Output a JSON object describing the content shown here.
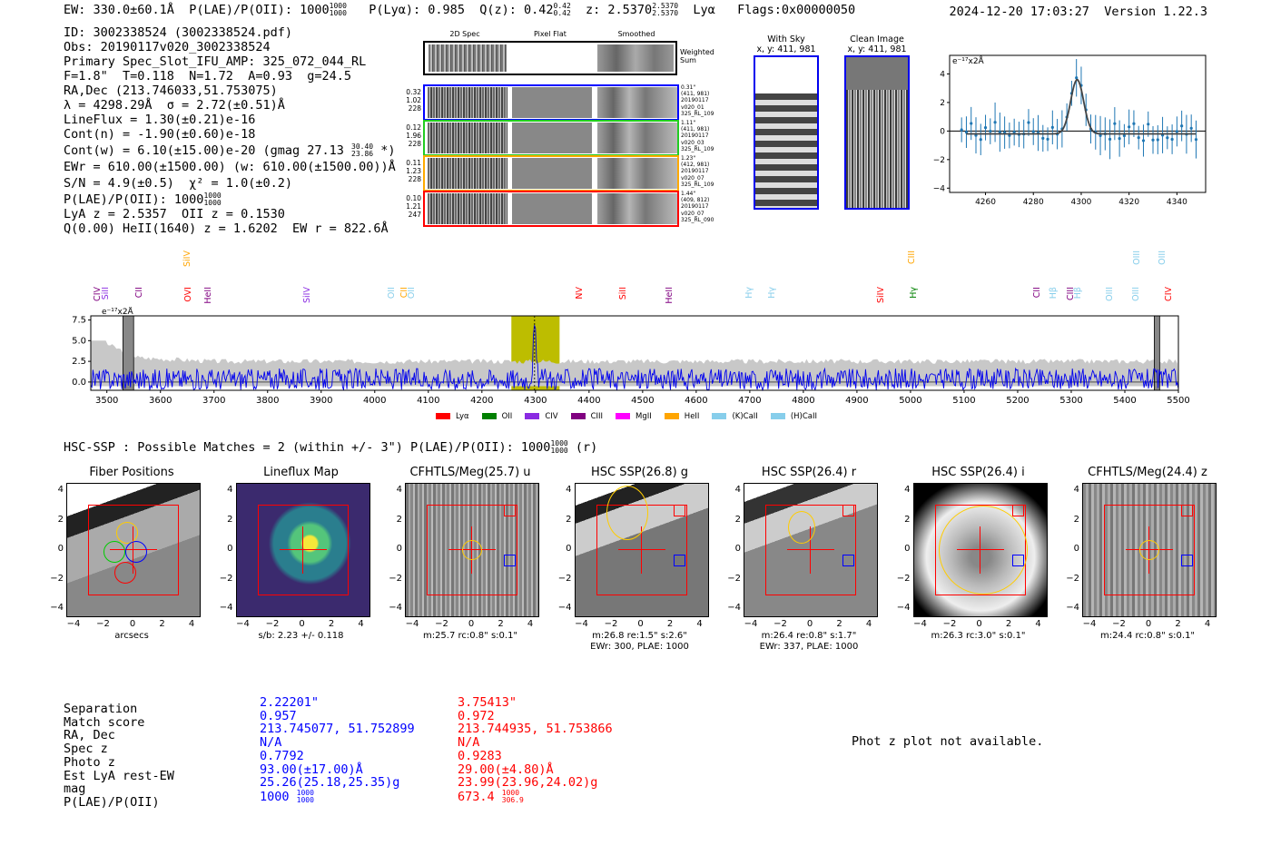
{
  "header": {
    "ew": "EW: 330.0±60.1Å",
    "plae_label": "P(LAE)/P(OII): 1000",
    "plae_hi": "1000",
    "plae_lo": "1000",
    "plya": "P(Lyα): 0.985",
    "qz_label": "Q(z): 0.42",
    "qz_hi": "0.42",
    "qz_lo": "0.42",
    "z_label": "z: 2.5370",
    "z_hi": "2.5370",
    "z_lo": "2.5370",
    "line_name": "Lyα",
    "flags": "Flags:0x00000050",
    "timestamp": "2024-12-20 17:03:27",
    "version": "Version 1.22.3"
  },
  "info": {
    "id": "ID: 3002338524 (3002338524.pdf)",
    "obs": "Obs: 20190117v020_3002338524",
    "primary": "Primary Spec_Slot_IFU_AMP: 325_072_044_RL",
    "fstats": "F=1.8\"  T=0.118  N=1.72  A=0.93  g=24.5",
    "radec": "RA,Dec (213.746033,51.753075)",
    "lambda": "λ = 4298.29Å  σ = 2.72(±0.51)Å",
    "lineflux": "LineFlux = 1.30(±0.21)e-16",
    "contn": "Cont(n) = -1.90(±0.60)e-18",
    "contw": "Cont(w) = 6.10(±15.00)e-20 (gmag 27.13",
    "contw_hi": "30.40",
    "contw_lo": "23.86",
    "contw_end": "*)",
    "ewr": "EWr = 610.00(±1500.00) (w: 610.00(±1500.00))Å",
    "sn": "S/N = 4.9(±0.5)  χ² = 1.0(±0.2)",
    "plae": "P(LAE)/P(OII): 1000",
    "plae_hi": "1000",
    "plae_lo": "1000",
    "lya_z": "LyA z = 2.5357  OII z = 0.1530",
    "q_line": "Q(0.00) HeII(1640) z = 1.6202  EW r = 822.6Å"
  },
  "spec2d": {
    "col_headers": [
      "2D Spec",
      "Pixel Flat",
      "Smoothed"
    ],
    "weighted_label": "Weighted\nSum",
    "rows": [
      {
        "left": [
          "0.32",
          "1.02",
          "228"
        ],
        "right": [
          "0.31\"",
          "(411, 981)",
          "20190117",
          "v020_01",
          "325_RL_109"
        ],
        "color": "#0000ff"
      },
      {
        "left": [
          "0.12",
          "1.96",
          "228"
        ],
        "right": [
          "1.11\"",
          "(411, 981)",
          "20190117",
          "v020_03",
          "325_RL_109"
        ],
        "color": "#22cc22"
      },
      {
        "left": [
          "0.11",
          "1.23",
          "228"
        ],
        "right": [
          "1.23\"",
          "(412, 981)",
          "20190117",
          "v020_07",
          "325_RL_109"
        ],
        "color": "#ffaa00"
      },
      {
        "left": [
          "0.10",
          "1.21",
          "247"
        ],
        "right": [
          "1.44\"",
          "(409, 812)",
          "20190117",
          "v020_07",
          "325_RL_090"
        ],
        "color": "#ff0000"
      }
    ]
  },
  "sky": {
    "with_sky_title": "With Sky",
    "with_sky_xy": "x, y: 411, 981",
    "clean_title": "Clean Image",
    "clean_xy": "x, y: 411, 981"
  },
  "zoom_plot": {
    "unit_label": "e⁻¹⁷x2Å",
    "xticks": [
      "4260",
      "4280",
      "4300",
      "4320",
      "4340"
    ],
    "yticks": [
      "4",
      "2",
      "0",
      "−2",
      "−4"
    ]
  },
  "full_spec": {
    "unit_label": "e⁻¹⁷x2Å",
    "yticks": [
      "7.5",
      "5.0",
      "2.5",
      "0.0"
    ],
    "xticks": [
      "3500",
      "3600",
      "3700",
      "3800",
      "3900",
      "4000",
      "4100",
      "4200",
      "4300",
      "4400",
      "4500",
      "4600",
      "4700",
      "4800",
      "4900",
      "5000",
      "5100",
      "5200",
      "5300",
      "5400",
      "5500"
    ],
    "line_labels": [
      {
        "t": "CIV",
        "c": "#800080"
      },
      {
        "t": "SiII",
        "c": "#8a2be2"
      },
      {
        "t": "CII",
        "c": "#800080"
      },
      {
        "t": "SiIV",
        "c": "#ffa500"
      },
      {
        "t": "OVI",
        "c": "#ff0000"
      },
      {
        "t": "HeII",
        "c": "#800080"
      },
      {
        "t": "SiIV",
        "c": "#8a2be2"
      },
      {
        "t": "OII",
        "c": "#87ceeb"
      },
      {
        "t": "CII",
        "c": "#ffa500"
      },
      {
        "t": "OII",
        "c": "#87ceeb"
      },
      {
        "t": "NV",
        "c": "#ff0000"
      },
      {
        "t": "SiII",
        "c": "#ff0000"
      },
      {
        "t": "HeII",
        "c": "#800080"
      },
      {
        "t": "Hγ",
        "c": "#87ceeb"
      },
      {
        "t": "Hγ",
        "c": "#87ceeb"
      },
      {
        "t": "SiIV",
        "c": "#ff0000"
      },
      {
        "t": "CIII",
        "c": "#ffa500"
      },
      {
        "t": "Hγ",
        "c": "#008000"
      },
      {
        "t": "CII",
        "c": "#800080"
      },
      {
        "t": "Hβ",
        "c": "#87ceeb"
      },
      {
        "t": "CIII",
        "c": "#800080"
      },
      {
        "t": "Hβ",
        "c": "#87ceeb"
      },
      {
        "t": "OIII",
        "c": "#87ceeb"
      },
      {
        "t": "OIII",
        "c": "#87ceeb"
      },
      {
        "t": "OIII",
        "c": "#87ceeb"
      },
      {
        "t": "OIII",
        "c": "#87ceeb"
      },
      {
        "t": "CIV",
        "c": "#ff0000"
      }
    ],
    "legend": [
      {
        "label": "Lyα",
        "color": "#ff0000"
      },
      {
        "label": "OII",
        "color": "#008000"
      },
      {
        "label": "CIV",
        "color": "#8a2be2"
      },
      {
        "label": "CIII",
        "color": "#800080"
      },
      {
        "label": "MgII",
        "color": "#ff00ff"
      },
      {
        "label": "HeII",
        "color": "#ffa500"
      },
      {
        "label": "(K)CaII",
        "color": "#87ceeb"
      },
      {
        "label": "(H)CaII",
        "color": "#87ceeb"
      }
    ]
  },
  "chart_data": {
    "type": "line",
    "title": "",
    "xlabel": "",
    "ylabel": "e⁻¹⁷x2Å",
    "xlim": [
      3470,
      5500
    ],
    "ylim": [
      -1,
      8
    ],
    "highlight_band": [
      4255,
      4345
    ],
    "emission_line": 4298.29
  },
  "hsc_header": {
    "text": "HSC-SSP : Possible Matches = 2 (within +/- 3\")  P(LAE)/P(OII): 1000",
    "hi": "1000",
    "lo": "1000",
    "end": "(r)"
  },
  "cutouts": [
    {
      "title": "Fiber Positions",
      "caption1": "arcsecs",
      "caption2": ""
    },
    {
      "title": "Lineflux Map",
      "caption1": "s/b: 2.23 +/- 0.118",
      "caption2": ""
    },
    {
      "title": "CFHTLS/Meg(25.7) u",
      "caption1": "m:25.7 rc:0.8\"  s:0.1\"",
      "caption2": ""
    },
    {
      "title": "HSC SSP(26.8) g",
      "caption1": "m:26.8  re:1.5\"  s:2.6\"",
      "caption2": "EWr: 300, PLAE: 1000"
    },
    {
      "title": "HSC SSP(26.4) r",
      "caption1": "m:26.4  re:0.8\"  s:1.7\"",
      "caption2": "EWr: 337, PLAE: 1000"
    },
    {
      "title": "HSC SSP(26.4) i",
      "caption1": "m:26.3 rc:3.0\"  s:0.1\"",
      "caption2": ""
    },
    {
      "title": "CFHTLS/Meg(24.4) z",
      "caption1": "m:24.4 rc:0.8\"  s:0.1\"",
      "caption2": ""
    }
  ],
  "cutout_ticks": {
    "x": [
      "−4",
      "−2",
      "0",
      "2",
      "4"
    ],
    "y": [
      "4",
      "2",
      "0",
      "−2",
      "−4"
    ]
  },
  "matches": {
    "labels": [
      "Separation",
      "Match score",
      "RA, Dec",
      "Spec z",
      "Photo z",
      "Est LyA rest-EW",
      "mag",
      "P(LAE)/P(OII)"
    ],
    "m1": [
      "2.22201\"",
      "0.957",
      "213.745077, 51.752899",
      "N/A",
      "0.7792",
      "93.00(±17.00)Å",
      "25.26(25.18,25.35)g",
      "1000"
    ],
    "m1_plae_hi": "1000",
    "m1_plae_lo": "1000",
    "m2": [
      "3.75413\"",
      "0.972",
      "213.744935, 51.753866",
      "N/A",
      "0.9283",
      "29.00(±4.80)Å",
      "23.99(23.96,24.02)g",
      "673.4"
    ],
    "m2_plae_hi": "1000",
    "m2_plae_lo": "306.9"
  },
  "photz_note": "Phot z plot not available."
}
